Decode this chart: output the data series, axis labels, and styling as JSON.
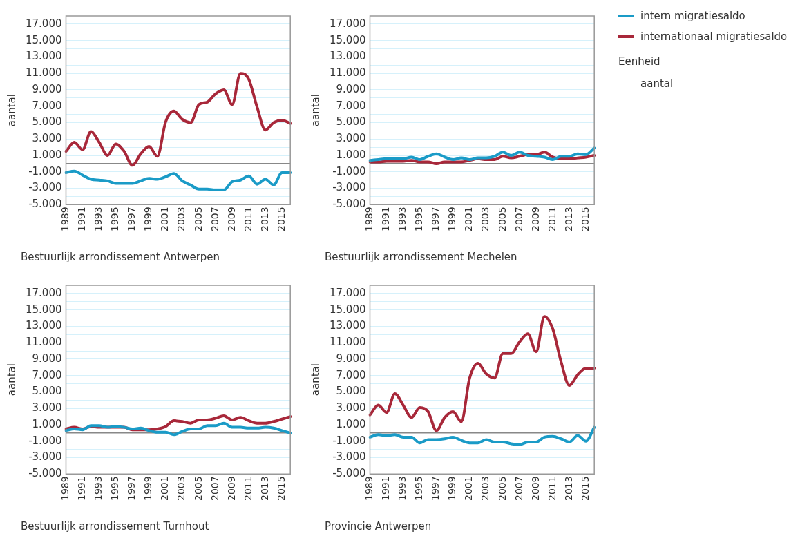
{
  "chart_data": [
    {
      "type": "line",
      "title": "Bestuurlijk arrondissement Antwerpen",
      "ylabel": "aantal",
      "categories": [
        "1989",
        null,
        "1991",
        null,
        "1993",
        null,
        "1995",
        null,
        "1997",
        null,
        "1999",
        null,
        "2001",
        null,
        "2003",
        null,
        "2005",
        null,
        "2007",
        null,
        "2009",
        null,
        "2011",
        null,
        "2013",
        null,
        "2015",
        null
      ],
      "ylim": [
        -5000,
        18000
      ],
      "yticks": [
        {
          "value": -5000,
          "label": "-5.000"
        },
        {
          "value": -4000,
          "label": null
        },
        {
          "value": -3000,
          "label": "-3.000"
        },
        {
          "value": -2000,
          "label": null
        },
        {
          "value": -1000,
          "label": "-1.000"
        },
        {
          "value": 0,
          "label": null
        },
        {
          "value": 1000,
          "label": "1.000"
        },
        {
          "value": 2000,
          "label": null
        },
        {
          "value": 3000,
          "label": "3.000"
        },
        {
          "value": 4000,
          "label": null
        },
        {
          "value": 5000,
          "label": "5.000"
        },
        {
          "value": 6000,
          "label": null
        },
        {
          "value": 7000,
          "label": "7.000"
        },
        {
          "value": 8000,
          "label": null
        },
        {
          "value": 9000,
          "label": "9.000"
        },
        {
          "value": 10000,
          "label": null
        },
        {
          "value": 11000,
          "label": "11.000"
        },
        {
          "value": 12000,
          "label": null
        },
        {
          "value": 13000,
          "label": "13.000"
        },
        {
          "value": 14000,
          "label": null
        },
        {
          "value": 15000,
          "label": "15.000"
        },
        {
          "value": 16000,
          "label": null
        },
        {
          "value": 17000,
          "label": "17.000"
        }
      ],
      "grid": "y",
      "marker": "none",
      "line_style": "solid",
      "series": [
        {
          "color": "#1a9bc7",
          "values": [
            -1100,
            -900,
            -1400,
            -1900,
            -2000,
            -2100,
            -2400,
            -2400,
            -2400,
            -2100,
            -1800,
            -1900,
            -1600,
            -1200,
            -2100,
            -2600,
            -3100,
            -3100,
            -3200,
            -3200,
            -2200,
            -2000,
            -1500,
            -2500,
            -1900,
            -2600,
            -1100,
            -1100
          ]
        },
        {
          "color": "#a8283a",
          "values": [
            1500,
            2600,
            1700,
            3900,
            2600,
            1000,
            2400,
            1500,
            -200,
            1200,
            2100,
            900,
            5100,
            6400,
            5400,
            5000,
            7200,
            7500,
            8500,
            9000,
            7200,
            11000,
            10300,
            6900,
            4100,
            5000,
            5300,
            4900
          ]
        }
      ]
    },
    {
      "type": "line",
      "title": "Bestuurlijk arrondissement Mechelen",
      "ylabel": "aantal",
      "categories": [
        "1989",
        null,
        "1991",
        null,
        "1993",
        null,
        "1995",
        null,
        "1997",
        null,
        "1999",
        null,
        "2001",
        null,
        "2003",
        null,
        "2005",
        null,
        "2007",
        null,
        "2009",
        null,
        "2011",
        null,
        "2013",
        null,
        "2015",
        null
      ],
      "ylim": [
        -5000,
        18000
      ],
      "yticks": [
        {
          "value": -5000,
          "label": "-5.000"
        },
        {
          "value": -4000,
          "label": null
        },
        {
          "value": -3000,
          "label": "-3.000"
        },
        {
          "value": -2000,
          "label": null
        },
        {
          "value": -1000,
          "label": "-1.000"
        },
        {
          "value": 0,
          "label": null
        },
        {
          "value": 1000,
          "label": "1.000"
        },
        {
          "value": 2000,
          "label": null
        },
        {
          "value": 3000,
          "label": "3.000"
        },
        {
          "value": 4000,
          "label": null
        },
        {
          "value": 5000,
          "label": "5.000"
        },
        {
          "value": 6000,
          "label": null
        },
        {
          "value": 7000,
          "label": "7.000"
        },
        {
          "value": 8000,
          "label": null
        },
        {
          "value": 9000,
          "label": "9.000"
        },
        {
          "value": 10000,
          "label": null
        },
        {
          "value": 11000,
          "label": "11.000"
        },
        {
          "value": 12000,
          "label": null
        },
        {
          "value": 13000,
          "label": "13.000"
        },
        {
          "value": 14000,
          "label": null
        },
        {
          "value": 15000,
          "label": "15.000"
        },
        {
          "value": 16000,
          "label": null
        },
        {
          "value": 17000,
          "label": "17.000"
        }
      ],
      "grid": "y",
      "marker": "none",
      "line_style": "solid",
      "legend": "right",
      "legend_title": "Eenheid",
      "annotations": [
        "aantal"
      ],
      "series": [
        {
          "name": "intern migratiesaldo",
          "color": "#1a9bc7",
          "values": [
            400,
            500,
            600,
            600,
            600,
            800,
            500,
            900,
            1200,
            800,
            500,
            700,
            500,
            700,
            700,
            900,
            1400,
            1000,
            1400,
            1000,
            900,
            800,
            500,
            900,
            900,
            1200,
            1100,
            1900
          ]
        },
        {
          "name": "internationaal migratiesaldo",
          "color": "#a8283a",
          "values": [
            200,
            200,
            300,
            300,
            300,
            400,
            200,
            200,
            0,
            200,
            200,
            200,
            400,
            600,
            500,
            500,
            900,
            700,
            900,
            1100,
            1100,
            1400,
            800,
            600,
            600,
            700,
            800,
            1000
          ]
        }
      ]
    },
    {
      "type": "line",
      "title": "Bestuurlijk arrondissement Turnhout",
      "ylabel": "aantal",
      "categories": [
        "1989",
        null,
        "1991",
        null,
        "1993",
        null,
        "1995",
        null,
        "1997",
        null,
        "1999",
        null,
        "2001",
        null,
        "2003",
        null,
        "2005",
        null,
        "2007",
        null,
        "2009",
        null,
        "2011",
        null,
        "2013",
        null,
        "2015",
        null
      ],
      "ylim": [
        -5000,
        18000
      ],
      "yticks": [
        {
          "value": -5000,
          "label": "-5.000"
        },
        {
          "value": -4000,
          "label": null
        },
        {
          "value": -3000,
          "label": "-3.000"
        },
        {
          "value": -2000,
          "label": null
        },
        {
          "value": -1000,
          "label": "-1.000"
        },
        {
          "value": 0,
          "label": null
        },
        {
          "value": 1000,
          "label": "1.000"
        },
        {
          "value": 2000,
          "label": null
        },
        {
          "value": 3000,
          "label": "3.000"
        },
        {
          "value": 4000,
          "label": null
        },
        {
          "value": 5000,
          "label": "5.000"
        },
        {
          "value": 6000,
          "label": null
        },
        {
          "value": 7000,
          "label": "7.000"
        },
        {
          "value": 8000,
          "label": null
        },
        {
          "value": 9000,
          "label": "9.000"
        },
        {
          "value": 10000,
          "label": null
        },
        {
          "value": 11000,
          "label": "11.000"
        },
        {
          "value": 12000,
          "label": null
        },
        {
          "value": 13000,
          "label": "13.000"
        },
        {
          "value": 14000,
          "label": null
        },
        {
          "value": 15000,
          "label": "15.000"
        },
        {
          "value": 16000,
          "label": null
        },
        {
          "value": 17000,
          "label": "17.000"
        }
      ],
      "grid": "y",
      "marker": "none",
      "line_style": "solid",
      "series": [
        {
          "color": "#1a9bc7",
          "values": [
            300,
            500,
            400,
            900,
            900,
            700,
            800,
            700,
            500,
            600,
            300,
            100,
            100,
            -200,
            200,
            500,
            500,
            900,
            900,
            1200,
            700,
            700,
            600,
            600,
            700,
            600,
            300,
            0
          ]
        },
        {
          "color": "#a8283a",
          "values": [
            500,
            700,
            500,
            800,
            700,
            700,
            700,
            700,
            400,
            400,
            400,
            500,
            800,
            1500,
            1400,
            1200,
            1600,
            1600,
            1800,
            2100,
            1600,
            1900,
            1500,
            1200,
            1200,
            1400,
            1700,
            2000
          ]
        }
      ]
    },
    {
      "type": "line",
      "title": "Provincie Antwerpen",
      "ylabel": "aantal",
      "categories": [
        "1989",
        null,
        "1991",
        null,
        "1993",
        null,
        "1995",
        null,
        "1997",
        null,
        "1999",
        null,
        "2001",
        null,
        "2003",
        null,
        "2005",
        null,
        "2007",
        null,
        "2009",
        null,
        "2011",
        null,
        "2013",
        null,
        "2015",
        null
      ],
      "ylim": [
        -5000,
        18000
      ],
      "yticks": [
        {
          "value": -5000,
          "label": "-5.000"
        },
        {
          "value": -4000,
          "label": null
        },
        {
          "value": -3000,
          "label": "-3.000"
        },
        {
          "value": -2000,
          "label": null
        },
        {
          "value": -1000,
          "label": "-1.000"
        },
        {
          "value": 0,
          "label": null
        },
        {
          "value": 1000,
          "label": "1.000"
        },
        {
          "value": 2000,
          "label": null
        },
        {
          "value": 3000,
          "label": "3.000"
        },
        {
          "value": 4000,
          "label": null
        },
        {
          "value": 5000,
          "label": "5.000"
        },
        {
          "value": 6000,
          "label": null
        },
        {
          "value": 7000,
          "label": "7.000"
        },
        {
          "value": 8000,
          "label": null
        },
        {
          "value": 9000,
          "label": "9.000"
        },
        {
          "value": 10000,
          "label": null
        },
        {
          "value": 11000,
          "label": "11.000"
        },
        {
          "value": 12000,
          "label": null
        },
        {
          "value": 13000,
          "label": "13.000"
        },
        {
          "value": 14000,
          "label": null
        },
        {
          "value": 15000,
          "label": "15.000"
        },
        {
          "value": 16000,
          "label": null
        },
        {
          "value": 17000,
          "label": "17.000"
        }
      ],
      "grid": "y",
      "marker": "none",
      "line_style": "solid",
      "series": [
        {
          "color": "#1a9bc7",
          "values": [
            -500,
            -200,
            -300,
            -200,
            -500,
            -500,
            -1200,
            -800,
            -800,
            -700,
            -500,
            -900,
            -1200,
            -1200,
            -800,
            -1100,
            -1100,
            -1300,
            -1400,
            -1100,
            -1100,
            -500,
            -400,
            -700,
            -1100,
            -300,
            -1000,
            700
          ]
        },
        {
          "color": "#a8283a",
          "values": [
            2200,
            3400,
            2500,
            4800,
            3400,
            1900,
            3100,
            2600,
            300,
            1900,
            2600,
            1400,
            6700,
            8500,
            7200,
            6700,
            9700,
            9700,
            11100,
            12100,
            9900,
            14200,
            12700,
            8700,
            5800,
            7100,
            7900,
            7900
          ]
        }
      ]
    }
  ]
}
